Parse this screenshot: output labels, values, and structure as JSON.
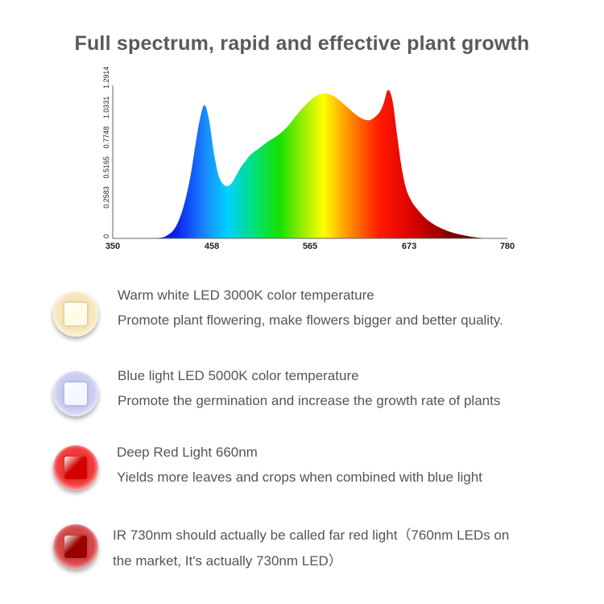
{
  "title": "Full spectrum, rapid and effective plant growth",
  "chart_data": {
    "type": "area",
    "x_ticks": [
      350,
      458,
      565,
      673,
      780
    ],
    "y_ticks": [
      "0",
      "0.2583",
      "0.5165",
      "0.7748",
      "1.0331",
      "1.2914"
    ],
    "xlim": [
      350,
      780
    ],
    "ylim": [
      0,
      1.2914
    ],
    "grid": false,
    "x": [
      395,
      405,
      410,
      415,
      420,
      425,
      430,
      435,
      440,
      445,
      450,
      455,
      460,
      465,
      470,
      475,
      480,
      485,
      490,
      495,
      500,
      510,
      520,
      530,
      540,
      550,
      560,
      570,
      580,
      590,
      600,
      610,
      620,
      630,
      640,
      645,
      650,
      655,
      660,
      665,
      670,
      675,
      680,
      690,
      700,
      710,
      720,
      730,
      740,
      750,
      760
    ],
    "y": [
      0,
      0.01,
      0.03,
      0.06,
      0.12,
      0.22,
      0.36,
      0.55,
      0.8,
      1.03,
      1.15,
      1.02,
      0.75,
      0.55,
      0.47,
      0.45,
      0.48,
      0.55,
      0.62,
      0.67,
      0.72,
      0.78,
      0.84,
      0.89,
      0.96,
      1.06,
      1.15,
      1.22,
      1.25,
      1.23,
      1.17,
      1.1,
      1.04,
      1.02,
      1.08,
      1.16,
      1.28,
      1.18,
      0.88,
      0.6,
      0.42,
      0.33,
      0.27,
      0.18,
      0.12,
      0.08,
      0.05,
      0.03,
      0.015,
      0.005,
      0
    ]
  },
  "features": [
    {
      "line1": "Warm white LED 3000K color temperature",
      "line2": "Promote plant flowering, make flowers bigger and better quality.",
      "icon": "warm-white-led-icon",
      "ring": "#f6e7b8",
      "chip": "#fffbe6"
    },
    {
      "line1": "Blue light LED 5000K color temperature",
      "line2": "Promote the germination and increase the growth rate of plants",
      "icon": "blue-light-led-icon",
      "ring": "#c9cdf2",
      "chip": "#f3f7ff"
    },
    {
      "line1": "Deep Red Light 660nm",
      "line2": "Yields more leaves and crops when combined with blue light",
      "icon": "deep-red-led-icon",
      "ring": "#f23a3a",
      "chip": "#d40000"
    },
    {
      "line1": "IR 730nm should actually be called far red light（760nm LEDs on",
      "line2": "the market, It's actually 730nm LED）",
      "icon": "far-red-led-icon",
      "ring": "#d44848",
      "chip": "#9a0000"
    }
  ]
}
